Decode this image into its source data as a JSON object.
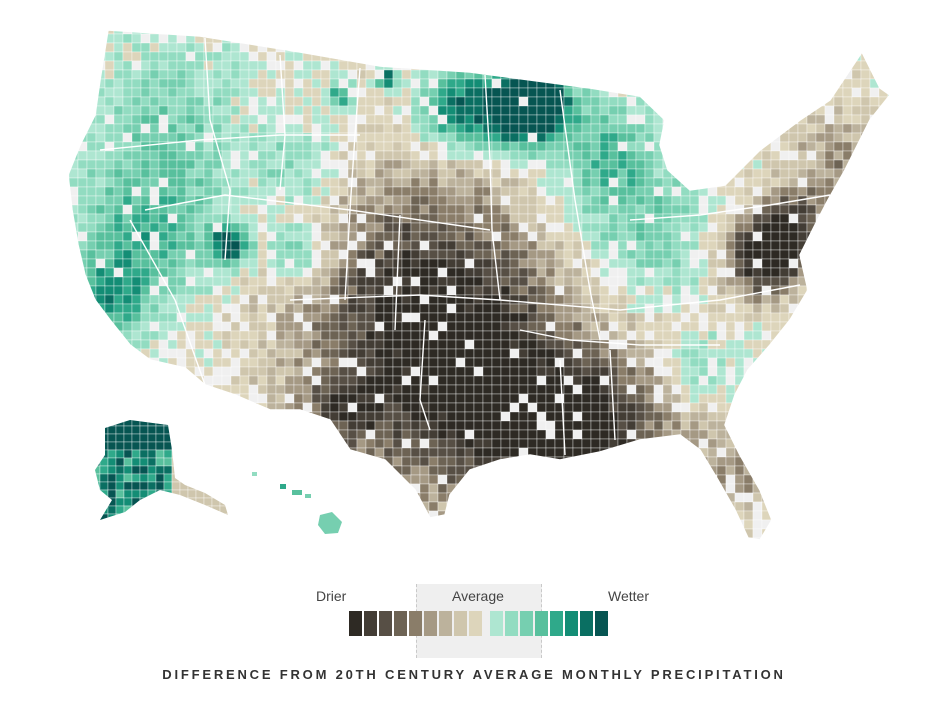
{
  "map": {
    "region": "United States counties",
    "color_scale": {
      "drier": [
        "#2e2a24",
        "#433d35",
        "#574f45",
        "#6d6354",
        "#8a7d69",
        "#a59984",
        "#bcb29c",
        "#cfc6ad",
        "#ddd5bb"
      ],
      "wetter": [
        "#aee6d1",
        "#92dcc1",
        "#76cfb0",
        "#58c09d",
        "#2fa98a",
        "#138d75",
        "#0a6f62",
        "#065552"
      ],
      "no_data": "#f0f0f0",
      "border": "#ffffff"
    }
  },
  "legend": {
    "drier_label": "Drier",
    "average_label": "Average",
    "wetter_label": "Wetter"
  },
  "caption": "DIFFERENCE FROM 20TH CENTURY AVERAGE MONTHLY PRECIPITATION"
}
